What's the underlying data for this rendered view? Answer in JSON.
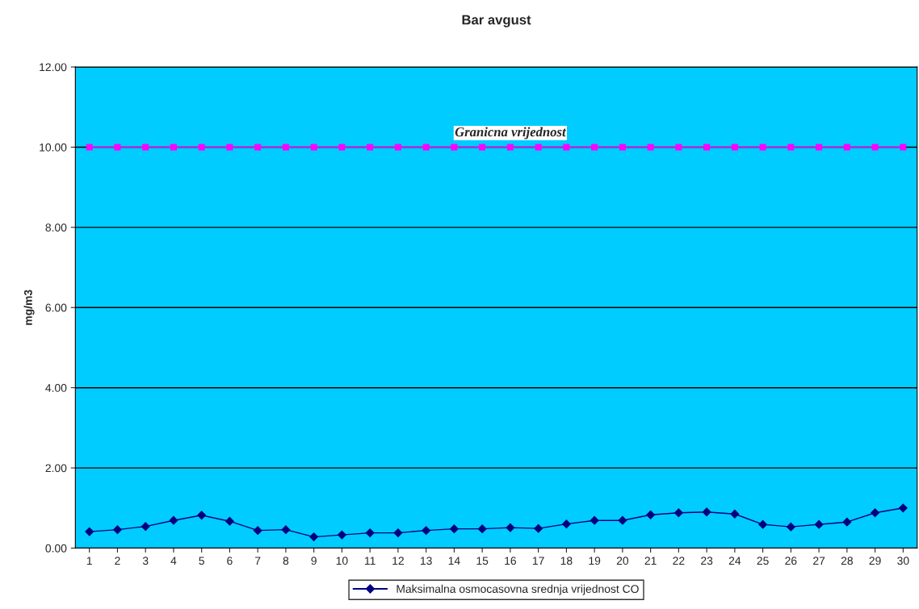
{
  "chart_data": {
    "type": "line",
    "title": "Bar avgust",
    "ylabel": "mg/m3",
    "categories": [
      "1",
      "2",
      "3",
      "4",
      "5",
      "6",
      "7",
      "8",
      "9",
      "10",
      "11",
      "12",
      "13",
      "14",
      "15",
      "16",
      "17",
      "18",
      "19",
      "20",
      "21",
      "22",
      "23",
      "24",
      "25",
      "26",
      "27",
      "28",
      "29",
      "30"
    ],
    "series": [
      {
        "name": "Maksimalna osmocasovna srednja vrijednost CO",
        "color": "#000080",
        "marker": "diamond",
        "values": [
          0.41,
          0.46,
          0.54,
          0.69,
          0.82,
          0.67,
          0.44,
          0.46,
          0.28,
          0.33,
          0.38,
          0.38,
          0.44,
          0.48,
          0.48,
          0.51,
          0.49,
          0.6,
          0.69,
          0.69,
          0.83,
          0.88,
          0.9,
          0.85,
          0.59,
          0.53,
          0.59,
          0.65,
          0.88,
          1.0
        ]
      },
      {
        "name": "Granicna vrijednost",
        "color": "#ff00ff",
        "marker": "square",
        "values": [
          10,
          10,
          10,
          10,
          10,
          10,
          10,
          10,
          10,
          10,
          10,
          10,
          10,
          10,
          10,
          10,
          10,
          10,
          10,
          10,
          10,
          10,
          10,
          10,
          10,
          10,
          10,
          10,
          10,
          10
        ]
      }
    ],
    "ylim": [
      0,
      12
    ],
    "yticks": [
      {
        "value": 0,
        "label": "0.00"
      },
      {
        "value": 2,
        "label": "2.00"
      },
      {
        "value": 4,
        "label": "4.00"
      },
      {
        "value": 6,
        "label": "6.00"
      },
      {
        "value": 8,
        "label": "8.00"
      },
      {
        "value": 10,
        "label": "10.00"
      },
      {
        "value": 12,
        "label": "12.00"
      }
    ],
    "grid": "y",
    "legend": "bottom",
    "line_style": "solid"
  }
}
